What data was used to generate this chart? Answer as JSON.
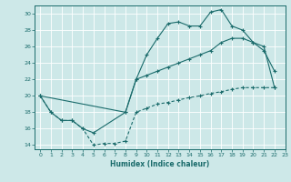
{
  "title": "",
  "xlabel": "Humidex (Indice chaleur)",
  "ylabel": "",
  "background_color": "#cde8e8",
  "grid_color": "#e8c8c8",
  "line_color": "#1a6b6b",
  "xlim": [
    -0.5,
    23
  ],
  "ylim": [
    13.5,
    31
  ],
  "yticks": [
    14,
    16,
    18,
    20,
    22,
    24,
    26,
    28,
    30
  ],
  "xticks": [
    0,
    1,
    2,
    3,
    4,
    5,
    6,
    7,
    8,
    9,
    10,
    11,
    12,
    13,
    14,
    15,
    16,
    17,
    18,
    19,
    20,
    21,
    22,
    23
  ],
  "line1_x": [
    0,
    1,
    2,
    3,
    4,
    5,
    8,
    9,
    10,
    11,
    12,
    13,
    14,
    15,
    16,
    17,
    18,
    19,
    20,
    21,
    22
  ],
  "line1_y": [
    20,
    18,
    17,
    17,
    16,
    15.5,
    18,
    22,
    25,
    27,
    28.8,
    29,
    28.5,
    28.5,
    30.2,
    30.5,
    28.5,
    28,
    26.5,
    25.5,
    23
  ],
  "line2_x": [
    0,
    8,
    9,
    10,
    11,
    12,
    13,
    14,
    15,
    16,
    17,
    18,
    19,
    20,
    21,
    22
  ],
  "line2_y": [
    20,
    18,
    22,
    22.5,
    23,
    23.5,
    24,
    24.5,
    25,
    25.5,
    26.5,
    27,
    27,
    26.5,
    26,
    21
  ],
  "line3_x": [
    0,
    1,
    2,
    3,
    4,
    5,
    6,
    7,
    8,
    9,
    10,
    11,
    12,
    13,
    14,
    15,
    16,
    17,
    18,
    19,
    20,
    21,
    22
  ],
  "line3_y": [
    20,
    18,
    17,
    17,
    16,
    14,
    14.2,
    14.2,
    14.5,
    18,
    18.5,
    19,
    19.2,
    19.5,
    19.8,
    20,
    20.3,
    20.5,
    20.8,
    21,
    21,
    21,
    21
  ]
}
